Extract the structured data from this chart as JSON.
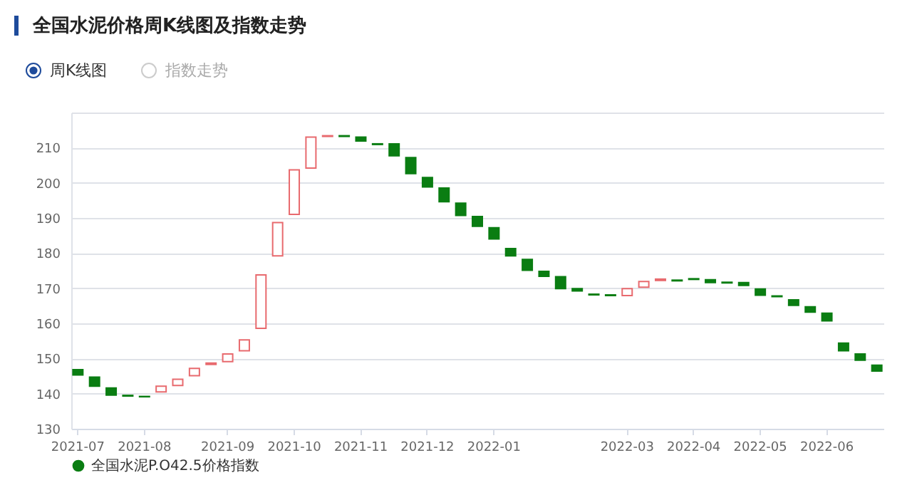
{
  "chart_data": {
    "type": "candlestick",
    "title": "全国水泥价格周K线图及指数走势",
    "annotations": [
      "周K线图",
      "指数走势"
    ],
    "categories": [
      "2021-07",
      null,
      null,
      null,
      "2021-08",
      null,
      null,
      null,
      null,
      "2021-09",
      null,
      null,
      null,
      "2021-10",
      null,
      null,
      null,
      "2021-11",
      null,
      null,
      null,
      "2021-12",
      null,
      null,
      null,
      "2022-01",
      null,
      null,
      null,
      null,
      null,
      null,
      null,
      "2022-03",
      null,
      null,
      null,
      "2022-04",
      null,
      null,
      null,
      "2022-05",
      null,
      null,
      null,
      "2022-06",
      null,
      null,
      null
    ],
    "series": [
      {
        "name": "全国水泥P.O42.5价格指数",
        "color": "#0a7d12",
        "colors": [
          "#0a7d12",
          "#0a7d12",
          "#0a7d12",
          "#0a7d12",
          "#0a7d12",
          "#e86a6e",
          "#e86a6e",
          "#e86a6e",
          "#e86a6e",
          "#e86a6e",
          "#e86a6e",
          "#e86a6e",
          "#e86a6e",
          "#e86a6e",
          "#e86a6e",
          "#e86a6e",
          "#0a7d12",
          "#0a7d12",
          "#0a7d12",
          "#0a7d12",
          "#0a7d12",
          "#0a7d12",
          "#0a7d12",
          "#0a7d12",
          "#0a7d12",
          "#0a7d12",
          "#0a7d12",
          "#0a7d12",
          "#0a7d12",
          "#0a7d12",
          "#0a7d12",
          "#0a7d12",
          "#0a7d12",
          "#e86a6e",
          "#e86a6e",
          "#e86a6e",
          "#0a7d12",
          "#0a7d12",
          "#0a7d12",
          "#0a7d12",
          "#0a7d12",
          "#0a7d12",
          "#0a7d12",
          "#0a7d12",
          "#0a7d12",
          "#0a7d12",
          "#0a7d12",
          "#0a7d12",
          "#0a7d12"
        ],
        "ohlc": [
          [
            146.8,
            146.8,
            145.3,
            145.3
          ],
          [
            144.7,
            144.7,
            142.1,
            142.1
          ],
          [
            141.6,
            141.6,
            139.6,
            139.6
          ],
          [
            139.5,
            139.5,
            139.3,
            139.3
          ],
          [
            139.2,
            139.2,
            139.1,
            139.1
          ],
          [
            140.5,
            142.1,
            140.5,
            142.1
          ],
          [
            142.3,
            144.1,
            142.3,
            144.1
          ],
          [
            145.1,
            147.2,
            145.1,
            147.2
          ],
          [
            148.3,
            148.7,
            148.3,
            148.7
          ],
          [
            149.1,
            151.3,
            149.1,
            151.3
          ],
          [
            152.2,
            155.3,
            152.2,
            155.3
          ],
          [
            158.6,
            173.8,
            158.6,
            173.8
          ],
          [
            179.2,
            188.7,
            179.2,
            188.7
          ],
          [
            191.0,
            203.7,
            191.0,
            203.7
          ],
          [
            204.2,
            213.0,
            204.2,
            213.0
          ],
          [
            213.2,
            213.4,
            213.2,
            213.4
          ],
          [
            213.4,
            213.4,
            213.2,
            213.2
          ],
          [
            213.0,
            213.0,
            211.9,
            211.9
          ],
          [
            211.1,
            211.1,
            210.9,
            210.9
          ],
          [
            211.1,
            211.1,
            207.7,
            207.7
          ],
          [
            207.2,
            207.2,
            202.6,
            202.6
          ],
          [
            201.5,
            201.5,
            198.8,
            198.8
          ],
          [
            198.5,
            198.5,
            194.6,
            194.6
          ],
          [
            194.2,
            194.2,
            190.7,
            190.7
          ],
          [
            190.4,
            190.4,
            187.6,
            187.6
          ],
          [
            187.2,
            187.2,
            184.0,
            184.0
          ],
          [
            181.3,
            181.3,
            179.2,
            179.2
          ],
          [
            178.2,
            178.2,
            175.1,
            175.1
          ],
          [
            174.8,
            174.8,
            173.4,
            173.4
          ],
          [
            173.3,
            173.3,
            169.9,
            169.9
          ],
          [
            169.9,
            169.9,
            169.2,
            169.2
          ],
          [
            168.3,
            168.3,
            168.1,
            168.1
          ],
          [
            168.1,
            168.1,
            167.9,
            167.9
          ],
          [
            167.9,
            169.9,
            167.9,
            169.9
          ],
          [
            170.3,
            171.9,
            170.3,
            171.9
          ],
          [
            172.2,
            172.6,
            172.2,
            172.6
          ],
          [
            172.3,
            172.3,
            172.1,
            172.1
          ],
          [
            172.7,
            172.7,
            172.5,
            172.5
          ],
          [
            172.4,
            172.4,
            171.6,
            171.6
          ],
          [
            171.7,
            171.7,
            171.5,
            171.5
          ],
          [
            171.6,
            171.6,
            170.8,
            170.8
          ],
          [
            169.8,
            169.8,
            168.0,
            168.0
          ],
          [
            167.8,
            167.8,
            167.6,
            167.6
          ],
          [
            166.7,
            166.7,
            165.1,
            165.1
          ],
          [
            164.7,
            164.7,
            163.2,
            163.2
          ],
          [
            162.9,
            162.9,
            160.7,
            160.7
          ],
          [
            154.4,
            154.4,
            152.2,
            152.2
          ],
          [
            151.3,
            151.3,
            149.5,
            149.5
          ],
          [
            148.1,
            148.1,
            146.4,
            146.4
          ]
        ]
      }
    ],
    "ylim": [
      130,
      220
    ],
    "yticks": [
      130,
      140,
      150,
      160,
      170,
      180,
      190,
      200,
      210,
      {
        "value": 220,
        "label": null
      }
    ],
    "grid": "y",
    "legend": "bottom"
  }
}
